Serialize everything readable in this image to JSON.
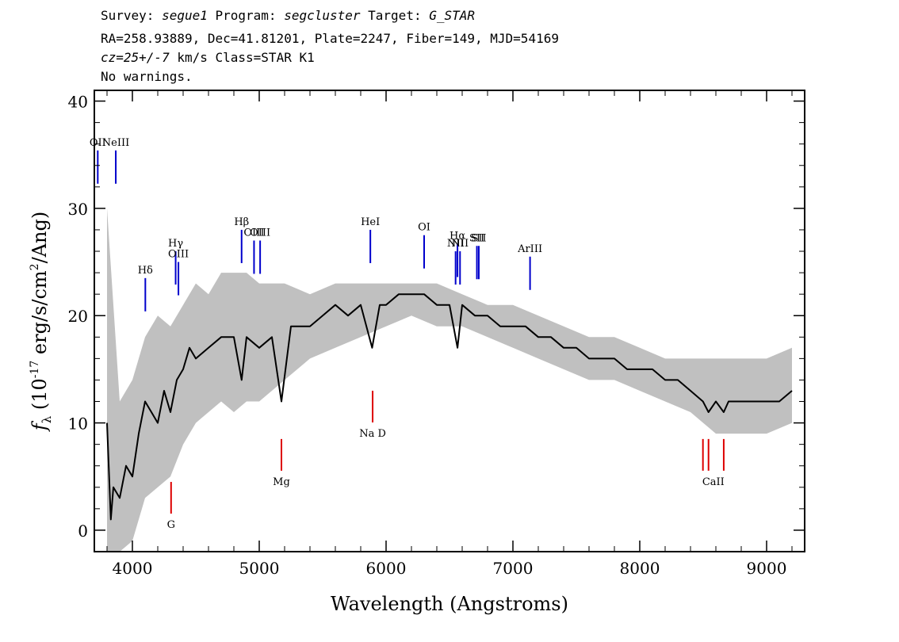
{
  "header": {
    "survey_prefix": "Survey: ",
    "survey": "segue1",
    "program_prefix": " Program: ",
    "program": "segcluster",
    "target_prefix": " Target: ",
    "target": "G_STAR",
    "line2": "RA=258.93889, Dec=41.81201, Plate=2247, Fiber=149, MJD=54169",
    "cz_prefix": "cz=25+/-7",
    "cz_rest": " km/s Class=STAR K1",
    "line4": "No warnings."
  },
  "chart_data": {
    "type": "line",
    "xlabel": "Wavelength (Angstroms)",
    "ylabel_main": "f",
    "ylabel_sub": "λ",
    "ylabel_rest_a": " (10",
    "ylabel_exp": "-17",
    "ylabel_rest_b": " erg/s/cm",
    "ylabel_sq": "2",
    "ylabel_rest_c": "/Ang)",
    "xlim": [
      3700,
      9300
    ],
    "ylim": [
      -2,
      41
    ],
    "x_ticks": [
      4000,
      5000,
      6000,
      7000,
      8000,
      9000
    ],
    "x_tick_labels": [
      "4000",
      "5000",
      "6000",
      "7000",
      "8000",
      "9000"
    ],
    "y_ticks": [
      0,
      10,
      20,
      30,
      40
    ],
    "y_tick_labels": [
      "0",
      "10",
      "20",
      "30",
      "40"
    ],
    "series": [
      {
        "role": "flux",
        "color": "#000000",
        "x": [
          3800,
          3830,
          3850,
          3900,
          3950,
          4000,
          4050,
          4100,
          4150,
          4200,
          4250,
          4300,
          4350,
          4400,
          4450,
          4500,
          4600,
          4700,
          4800,
          4861,
          4900,
          5000,
          5100,
          5175,
          5250,
          5400,
          5500,
          5600,
          5700,
          5800,
          5890,
          5950,
          6000,
          6100,
          6200,
          6300,
          6400,
          6500,
          6563,
          6600,
          6700,
          6800,
          6900,
          7000,
          7100,
          7200,
          7300,
          7400,
          7500,
          7600,
          7700,
          7800,
          7900,
          8000,
          8100,
          8200,
          8300,
          8400,
          8498,
          8542,
          8600,
          8662,
          8700,
          8800,
          8900,
          9000,
          9100,
          9200
        ],
        "y": [
          10,
          1,
          4,
          3,
          6,
          5,
          9,
          12,
          11,
          10,
          13,
          11,
          14,
          15,
          17,
          16,
          17,
          18,
          18,
          14,
          18,
          17,
          18,
          12,
          19,
          19,
          20,
          21,
          20,
          21,
          17,
          21,
          21,
          22,
          22,
          22,
          21,
          21,
          17,
          21,
          20,
          20,
          19,
          19,
          19,
          18,
          18,
          17,
          17,
          16,
          16,
          16,
          15,
          15,
          15,
          14,
          14,
          13,
          12,
          11,
          12,
          11,
          12,
          12,
          12,
          12,
          12,
          13
        ]
      },
      {
        "role": "noise_envelope",
        "color": "#c0c0c0",
        "x": [
          3800,
          3900,
          4000,
          4100,
          4200,
          4300,
          4400,
          4500,
          4600,
          4700,
          4800,
          4900,
          5000,
          5200,
          5400,
          5600,
          5800,
          6000,
          6200,
          6400,
          6600,
          6800,
          7000,
          7200,
          7400,
          7600,
          7800,
          8000,
          8200,
          8400,
          8600,
          8800,
          9000,
          9200
        ],
        "upper": [
          30,
          12,
          14,
          18,
          20,
          19,
          21,
          23,
          22,
          24,
          24,
          24,
          23,
          23,
          22,
          23,
          23,
          23,
          23,
          23,
          22,
          21,
          21,
          20,
          19,
          18,
          18,
          17,
          16,
          16,
          16,
          16,
          16,
          17
        ],
        "lower": [
          -2,
          -2,
          -1,
          3,
          4,
          5,
          8,
          10,
          11,
          12,
          11,
          12,
          12,
          14,
          16,
          17,
          18,
          19,
          20,
          19,
          19,
          18,
          17,
          16,
          15,
          14,
          14,
          13,
          12,
          11,
          9,
          9,
          9,
          10
        ]
      }
    ],
    "emission_lines": [
      {
        "label": "OII",
        "wavelength": 3727,
        "y": 35.4
      },
      {
        "label": "NeIII",
        "wavelength": 3869,
        "y": 35.4
      },
      {
        "label": "Hδ",
        "wavelength": 4102,
        "y": 23.5
      },
      {
        "label": "Hγ",
        "wavelength": 4341,
        "y": 26.0
      },
      {
        "label": "OIII",
        "wavelength": 4363,
        "y": 25.0
      },
      {
        "label": "Hβ",
        "wavelength": 4861,
        "y": 28.0
      },
      {
        "label": "OIII",
        "wavelength": 4959,
        "y": 27.0
      },
      {
        "label": "OIII",
        "wavelength": 5007,
        "y": 27.0
      },
      {
        "label": "HeI",
        "wavelength": 5876,
        "y": 28.0
      },
      {
        "label": "OI",
        "wavelength": 6300,
        "y": 27.5
      },
      {
        "label": "NII",
        "wavelength": 6548,
        "y": 26.0
      },
      {
        "label": "Hα",
        "wavelength": 6563,
        "y": 26.7
      },
      {
        "label": "NII",
        "wavelength": 6583,
        "y": 26.0
      },
      {
        "label": "SII",
        "wavelength": 6716,
        "y": 26.5
      },
      {
        "label": "SII",
        "wavelength": 6731,
        "y": 26.5
      },
      {
        "label": "ArIII",
        "wavelength": 7135,
        "y": 25.5
      }
    ],
    "absorption_lines": [
      {
        "label": "G",
        "wavelength": 4305,
        "y": 4.5
      },
      {
        "label": "Mg",
        "wavelength": 5175,
        "y": 8.5
      },
      {
        "label": "Na D",
        "wavelength": 5894,
        "y": 13.0
      },
      {
        "label": "CaII",
        "wavelength": 8498,
        "y": 8.5
      },
      {
        "label": "CaII",
        "wavelength": 8542,
        "y": 8.5
      },
      {
        "label": "CaII",
        "wavelength": 8662,
        "y": 8.5
      }
    ],
    "visible_labels": {
      "emission": [
        "OII",
        "NeIII",
        "Hδ",
        "Hγ",
        "OIII",
        "Hβ",
        "OIII",
        "HeI",
        "OI",
        "NII",
        "Hα",
        "NII",
        "SII",
        "ArIII"
      ],
      "absorption": [
        "G",
        "Mg",
        "Na D",
        "CaII"
      ]
    },
    "colors": {
      "emission": "#0000cc",
      "absorption": "#dd0000",
      "flux": "#000000",
      "noise": "#c0c0c0"
    }
  }
}
